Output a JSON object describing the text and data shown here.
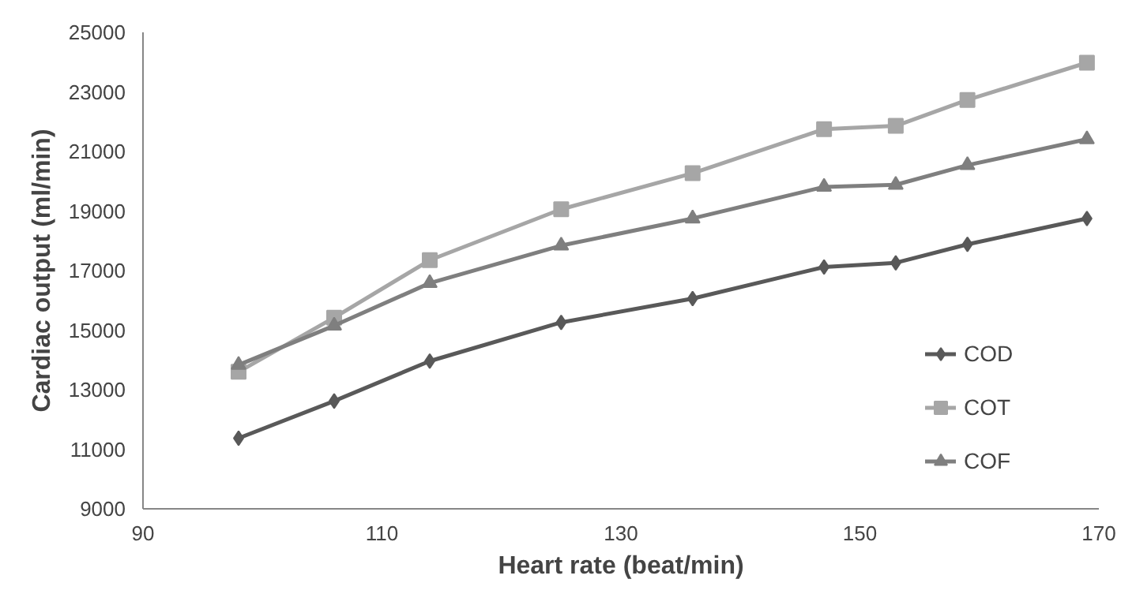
{
  "chart_data": {
    "type": "line",
    "xlabel": "Heart rate (beat/min)",
    "ylabel": "Cardiac output (ml/min)",
    "xlim": [
      90,
      170
    ],
    "xticks": [
      90,
      110,
      130,
      150,
      170
    ],
    "ylim": [
      9000,
      25000
    ],
    "yticks": [
      9000,
      11000,
      13000,
      15000,
      17000,
      19000,
      21000,
      23000,
      25000
    ],
    "grid": false,
    "legend": "right",
    "x": [
      98,
      106,
      114,
      125,
      136,
      147,
      153,
      159,
      169
    ],
    "series": [
      {
        "name": "COD",
        "color": "#595959",
        "marker": "diamond",
        "values": [
          11370,
          12620,
          13960,
          15260,
          16060,
          17120,
          17260,
          17880,
          18750
        ]
      },
      {
        "name": "COT",
        "color": "#a6a6a6",
        "marker": "square",
        "values": [
          13600,
          15420,
          17350,
          19060,
          20270,
          21750,
          21860,
          22730,
          23980
        ]
      },
      {
        "name": "COF",
        "color": "#7f7f7f",
        "marker": "triangle",
        "values": [
          13830,
          15150,
          16580,
          17840,
          18750,
          19810,
          19880,
          20540,
          21410
        ]
      }
    ]
  }
}
